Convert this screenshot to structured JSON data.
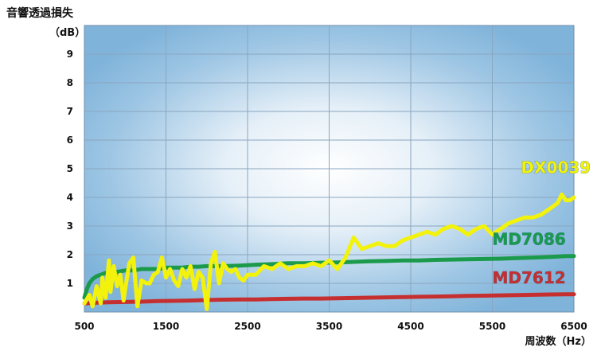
{
  "chart_data": {
    "type": "line",
    "title": "",
    "ylabel_title": "音響透過損失",
    "ylabel_unit": "（dB）",
    "xlabel": "周波数（Hz）",
    "xlim": [
      500,
      6500
    ],
    "ylim": [
      0,
      10
    ],
    "x_ticks": [
      500,
      1500,
      2500,
      3500,
      4500,
      5500,
      6500
    ],
    "y_ticks": [
      1,
      2,
      3,
      4,
      5,
      6,
      7,
      8,
      9
    ],
    "grid": true,
    "series": [
      {
        "name": "DX0039",
        "color": "#f2f20c",
        "x": [
          500,
          560,
          600,
          650,
          700,
          720,
          760,
          800,
          820,
          860,
          900,
          940,
          980,
          1000,
          1050,
          1100,
          1150,
          1200,
          1260,
          1300,
          1350,
          1400,
          1450,
          1500,
          1550,
          1600,
          1650,
          1700,
          1750,
          1800,
          1850,
          1900,
          1950,
          2000,
          2050,
          2100,
          2150,
          2200,
          2250,
          2300,
          2350,
          2400,
          2450,
          2500,
          2600,
          2700,
          2800,
          2900,
          3000,
          3100,
          3200,
          3300,
          3400,
          3500,
          3600,
          3700,
          3800,
          3850,
          3900,
          4000,
          4100,
          4200,
          4300,
          4400,
          4500,
          4600,
          4700,
          4800,
          4900,
          5000,
          5100,
          5200,
          5300,
          5400,
          5500,
          5550,
          5600,
          5700,
          5800,
          5900,
          6000,
          6100,
          6200,
          6300,
          6350,
          6400,
          6450,
          6500
        ],
        "y": [
          0.3,
          0.6,
          0.2,
          0.9,
          0.3,
          1.2,
          0.5,
          1.8,
          0.7,
          1.6,
          0.9,
          1.3,
          0.4,
          0.8,
          1.7,
          1.9,
          0.2,
          1.1,
          1.0,
          1.0,
          1.3,
          1.4,
          1.9,
          1.2,
          1.5,
          1.1,
          0.9,
          1.5,
          1.2,
          1.6,
          0.8,
          1.4,
          1.2,
          0.1,
          1.7,
          2.1,
          1.0,
          1.7,
          1.5,
          1.4,
          1.5,
          1.2,
          1.1,
          1.3,
          1.3,
          1.6,
          1.5,
          1.7,
          1.5,
          1.6,
          1.6,
          1.7,
          1.6,
          1.8,
          1.5,
          1.9,
          2.6,
          2.4,
          2.2,
          2.3,
          2.4,
          2.3,
          2.3,
          2.5,
          2.6,
          2.7,
          2.8,
          2.7,
          2.9,
          3.0,
          2.9,
          2.7,
          2.9,
          3.0,
          2.7,
          2.8,
          2.9,
          3.1,
          3.2,
          3.3,
          3.3,
          3.4,
          3.6,
          3.8,
          4.1,
          3.9,
          3.9,
          4.0
        ]
      },
      {
        "name": "MD7086",
        "color": "#1a9a4a",
        "x": [
          500,
          530,
          560,
          600,
          650,
          700,
          750,
          800,
          900,
          1000,
          1100,
          1200,
          1300,
          1400,
          1500,
          1600,
          1700,
          1800,
          1900,
          2000,
          2200,
          2400,
          2600,
          2800,
          3000,
          3200,
          3400,
          3600,
          3800,
          4000,
          4200,
          4400,
          4600,
          4800,
          5000,
          5200,
          5400,
          5600,
          5800,
          6000,
          6200,
          6400,
          6500
        ],
        "y": [
          0.5,
          0.8,
          1.0,
          1.15,
          1.25,
          1.3,
          1.35,
          1.4,
          1.4,
          1.45,
          1.45,
          1.5,
          1.5,
          1.5,
          1.55,
          1.55,
          1.55,
          1.58,
          1.58,
          1.6,
          1.6,
          1.62,
          1.65,
          1.67,
          1.7,
          1.7,
          1.72,
          1.73,
          1.75,
          1.77,
          1.78,
          1.8,
          1.8,
          1.82,
          1.83,
          1.84,
          1.85,
          1.86,
          1.88,
          1.9,
          1.92,
          1.95,
          1.95
        ]
      },
      {
        "name": "MD7612",
        "color": "#c62f2f",
        "x": [
          500,
          600,
          700,
          800,
          1000,
          1200,
          1400,
          1600,
          1800,
          2000,
          2200,
          2400,
          2600,
          2800,
          3000,
          3200,
          3400,
          3600,
          3800,
          4000,
          4200,
          4400,
          4600,
          4800,
          5000,
          5200,
          5400,
          5600,
          5800,
          6000,
          6200,
          6400,
          6500
        ],
        "y": [
          0.3,
          0.32,
          0.33,
          0.34,
          0.35,
          0.36,
          0.38,
          0.39,
          0.4,
          0.42,
          0.43,
          0.44,
          0.44,
          0.45,
          0.46,
          0.47,
          0.47,
          0.48,
          0.49,
          0.5,
          0.51,
          0.52,
          0.53,
          0.54,
          0.55,
          0.56,
          0.57,
          0.58,
          0.59,
          0.6,
          0.61,
          0.62,
          0.62
        ]
      }
    ]
  }
}
